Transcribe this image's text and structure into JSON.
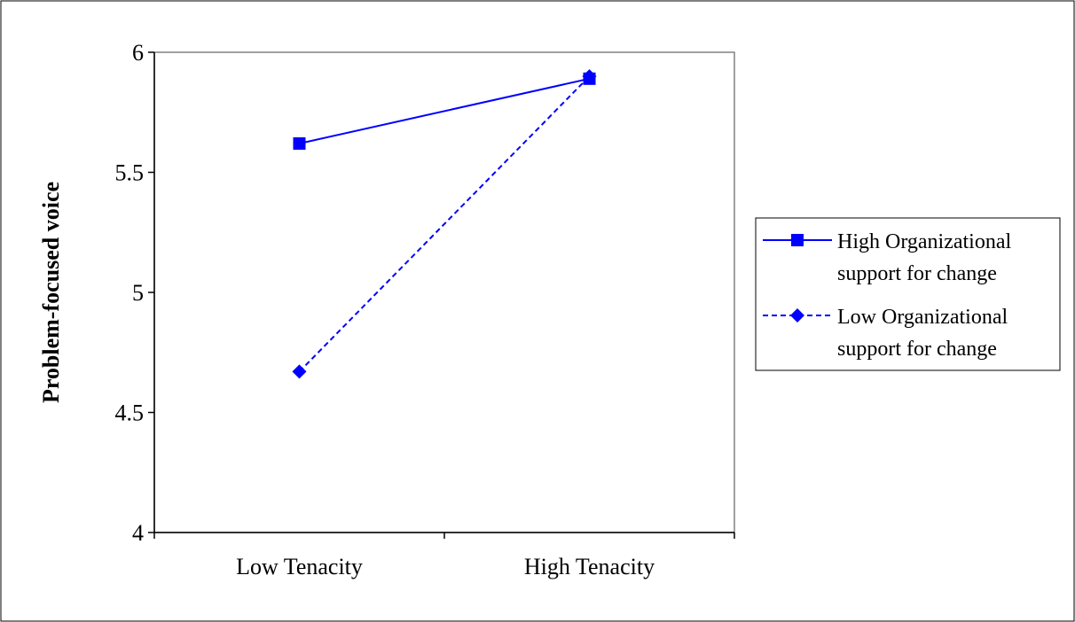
{
  "chart_data": {
    "type": "line",
    "categories": [
      "Low Tenacity",
      "High Tenacity"
    ],
    "series": [
      {
        "name": "High Organizational support for change",
        "name_lines": [
          "High Organizational",
          "support for change"
        ],
        "values": [
          5.62,
          5.89
        ],
        "marker": "square",
        "line_style": "solid",
        "color": "#0000FF"
      },
      {
        "name": "Low Organizational support for change",
        "name_lines": [
          "Low Organizational",
          "support for change"
        ],
        "values": [
          4.67,
          5.9
        ],
        "marker": "diamond",
        "line_style": "dashed",
        "color": "#0000FF"
      }
    ],
    "title": "",
    "xlabel": "",
    "ylabel": "Problem-focused voice",
    "ylim": [
      4,
      6
    ],
    "yticks": [
      "4",
      "4.5",
      "5",
      "5.5",
      "6"
    ],
    "grid": false,
    "legend_position": "right"
  }
}
